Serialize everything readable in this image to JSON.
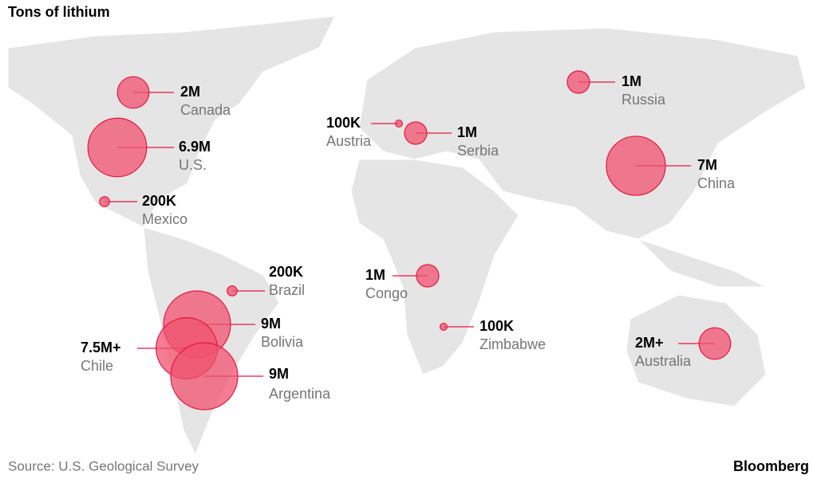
{
  "chart_data": {
    "type": "bubble-map",
    "title": "Tons of lithium",
    "categories": [
      "Canada",
      "U.S.",
      "Mexico",
      "Brazil",
      "Bolivia",
      "Chile",
      "Argentina",
      "Austria",
      "Serbia",
      "Congo",
      "Zimbabwe",
      "Russia",
      "China",
      "Australia"
    ],
    "values": [
      2000000,
      6900000,
      200000,
      200000,
      9000000,
      7500000,
      9000000,
      100000,
      1000000,
      1000000,
      100000,
      1000000,
      7000000,
      2000000
    ],
    "value_labels": [
      "2M",
      "6.9M",
      "200K",
      "200K",
      "9M",
      "7.5M+",
      "9M",
      "100K",
      "1M",
      "1M",
      "100K",
      "1M",
      "7M",
      "2M+"
    ],
    "color": "#f0526f"
  },
  "source": "Source: U.S. Geological Survey",
  "brand": "Bloomberg"
}
